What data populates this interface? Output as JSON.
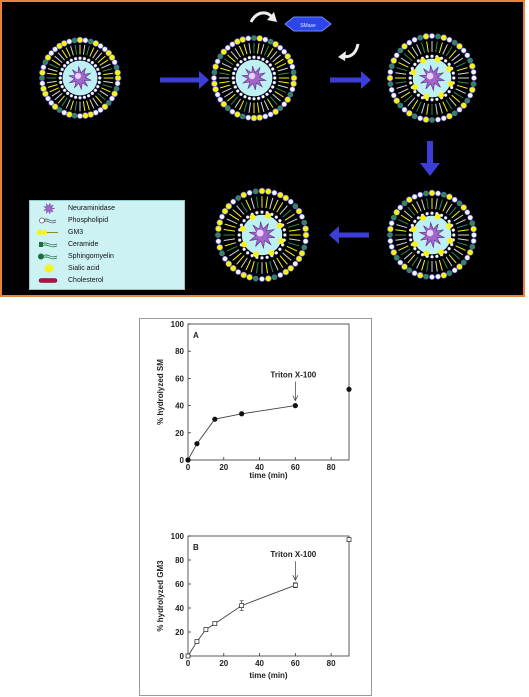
{
  "diagram": {
    "enzyme_label": "SMase",
    "legend": [
      {
        "label": "Neuraminidase",
        "icon": "neuraminidase-icon"
      },
      {
        "label": "Phospholipid",
        "icon": "phospholipid-icon"
      },
      {
        "label": "GM3",
        "icon": "gm3-icon"
      },
      {
        "label": "Ceramide",
        "icon": "ceramide-icon"
      },
      {
        "label": "Sphingomyelin",
        "icon": "sphingomyelin-icon"
      },
      {
        "label": "Sialic acid",
        "icon": "sialic-acid-icon"
      },
      {
        "label": "Cholesterol",
        "icon": "cholesterol-icon"
      }
    ],
    "colors": {
      "frame": "#e8843c",
      "background": "#000000",
      "arrow": "#3b3fd8",
      "core": "#bdf0f3",
      "enzyme": "#a066c8",
      "gm3": "#f7f21a",
      "sphingomyelin": "#1b6e3a",
      "phospholipid": "#ffffff",
      "legend_bg": "#cdf2f4"
    }
  },
  "chart_data": [
    {
      "type": "line",
      "panel_letter": "A",
      "title": "",
      "xlabel": "time (min)",
      "ylabel": "% hydrolyzed  SM",
      "xlim": [
        0,
        90
      ],
      "ylim": [
        0,
        100
      ],
      "xticks": [
        0,
        20,
        40,
        60,
        80
      ],
      "yticks": [
        0,
        20,
        40,
        60,
        80,
        100
      ],
      "series": [
        {
          "x": [
            0,
            5,
            15,
            30,
            60
          ],
          "y": [
            0,
            12,
            30,
            34,
            40
          ],
          "marker": "filled-circle",
          "connected": true
        },
        {
          "x": [
            90
          ],
          "y": [
            52
          ],
          "marker": "filled-circle",
          "connected": false
        }
      ],
      "annotation": {
        "text": "Triton X-100",
        "x": 60,
        "y": 40
      }
    },
    {
      "type": "line",
      "panel_letter": "B",
      "title": "",
      "xlabel": "time (min)",
      "ylabel": "% hydrolyzed GM3",
      "xlim": [
        0,
        90
      ],
      "ylim": [
        0,
        100
      ],
      "xticks": [
        0,
        20,
        40,
        60,
        80
      ],
      "yticks": [
        0,
        20,
        40,
        60,
        80,
        100
      ],
      "series": [
        {
          "x": [
            0,
            5,
            10,
            15,
            30,
            60
          ],
          "y": [
            0,
            12,
            22,
            27,
            42,
            59
          ],
          "marker": "open-square",
          "connected": true,
          "error": [
            0,
            1,
            1,
            1,
            4,
            2
          ]
        },
        {
          "x": [
            90
          ],
          "y": [
            97
          ],
          "marker": "open-square",
          "connected": false,
          "error": [
            0
          ]
        }
      ],
      "annotation": {
        "text": "Triton X-100",
        "x": 60,
        "y": 59
      }
    }
  ]
}
